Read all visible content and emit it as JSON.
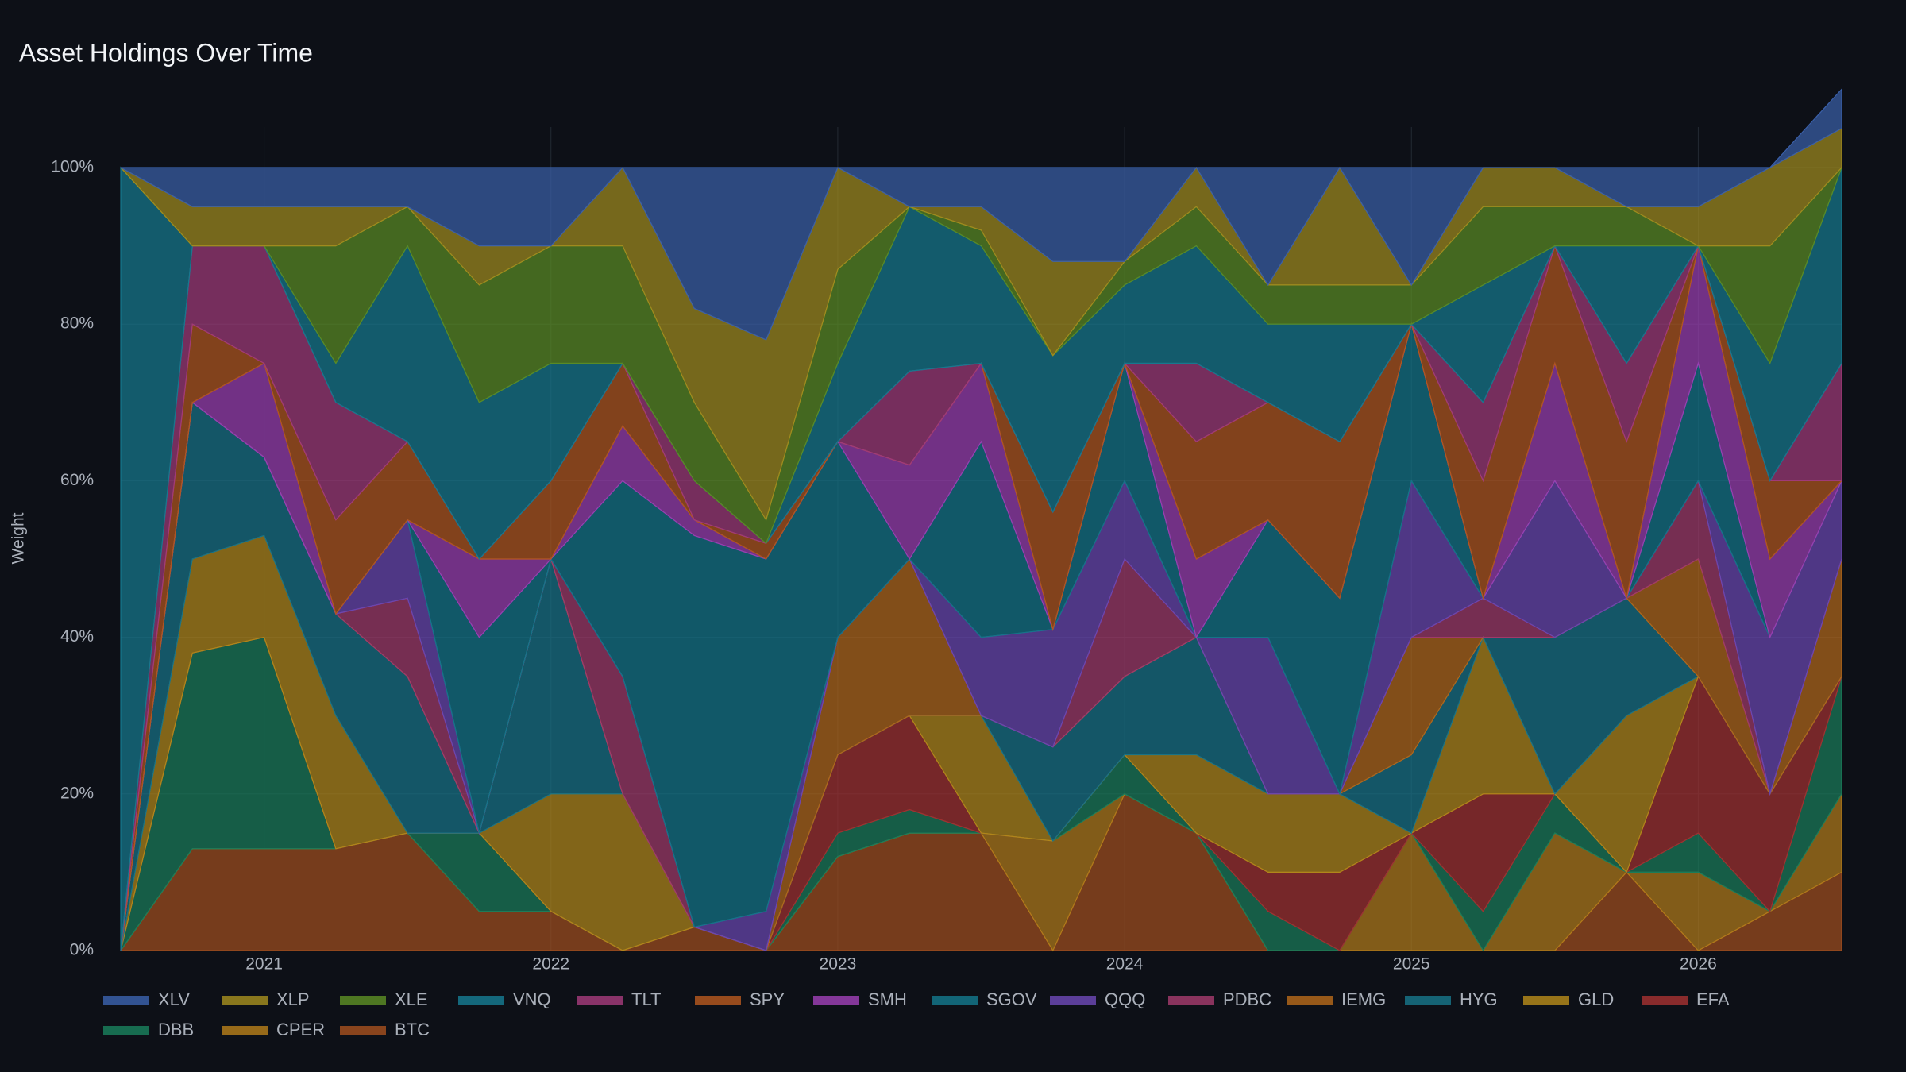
{
  "chart_data": {
    "type": "stacked_area",
    "title": "Asset Holdings Over Time",
    "y_label": "Weight",
    "x": [
      2020.5,
      2020.75,
      2021.0,
      2021.25,
      2021.5,
      2021.75,
      2022.0,
      2022.25,
      2022.5,
      2022.75,
      2023.0,
      2023.25,
      2023.5,
      2023.75,
      2024.0,
      2024.25,
      2024.5,
      2024.75,
      2025.0,
      2025.25,
      2025.5,
      2025.75,
      2026.0,
      2026.25,
      2026.5
    ],
    "xlim": [
      2020.5,
      2026.5
    ],
    "xticks": [
      2021,
      2022,
      2023,
      2024,
      2025,
      2026
    ],
    "ylim": [
      0,
      100
    ],
    "yticks": [
      {
        "value": 0,
        "label": "0%"
      },
      {
        "value": 20,
        "label": "20%"
      },
      {
        "value": 40,
        "label": "40%"
      },
      {
        "value": 60,
        "label": "60%"
      },
      {
        "value": 80,
        "label": "80%"
      },
      {
        "value": 100,
        "label": "100%"
      }
    ],
    "grid": true,
    "series": [
      {
        "name": "XLV",
        "color": "#3a5fa8",
        "values": [
          0,
          5,
          5,
          5,
          5,
          10,
          10,
          0,
          18,
          22,
          0,
          5,
          5,
          12,
          12,
          0,
          15,
          0,
          15,
          0,
          0,
          5,
          5,
          0,
          5
        ]
      },
      {
        "name": "XLP",
        "color": "#a08a1e",
        "values": [
          0,
          5,
          5,
          5,
          0,
          5,
          0,
          10,
          12,
          23,
          13,
          0,
          3,
          12,
          0,
          5,
          0,
          15,
          0,
          5,
          5,
          0,
          5,
          10,
          5
        ]
      },
      {
        "name": "XLE",
        "color": "#5a8a24",
        "values": [
          0,
          0,
          0,
          15,
          5,
          15,
          15,
          15,
          10,
          3,
          12,
          0,
          2,
          0,
          3,
          5,
          5,
          5,
          5,
          10,
          5,
          5,
          0,
          15,
          0
        ]
      },
      {
        "name": "VNQ",
        "color": "#16788e",
        "values": [
          100,
          0,
          0,
          5,
          25,
          20,
          15,
          0,
          0,
          0,
          10,
          21,
          15,
          20,
          10,
          15,
          10,
          15,
          0,
          15,
          0,
          15,
          0,
          15,
          25
        ]
      },
      {
        "name": "TLT",
        "color": "#a03a78",
        "values": [
          0,
          10,
          15,
          15,
          0,
          0,
          0,
          0,
          5,
          0,
          0,
          12,
          0,
          0,
          0,
          10,
          0,
          0,
          0,
          10,
          0,
          10,
          0,
          0,
          15
        ]
      },
      {
        "name": "SPY",
        "color": "#b0561e",
        "values": [
          0,
          10,
          0,
          12,
          10,
          0,
          10,
          8,
          0,
          2,
          0,
          0,
          0,
          15,
          0,
          15,
          15,
          20,
          0,
          15,
          15,
          20,
          0,
          10,
          0
        ]
      },
      {
        "name": "SMH",
        "color": "#9a3eb0",
        "values": [
          0,
          0,
          12,
          0,
          0,
          10,
          0,
          7,
          2,
          0,
          0,
          12,
          10,
          0,
          0,
          10,
          0,
          0,
          0,
          0,
          15,
          0,
          15,
          10,
          0
        ]
      },
      {
        "name": "SGOV",
        "color": "#147488",
        "values": [
          0,
          0,
          0,
          0,
          0,
          25,
          0,
          25,
          50,
          45,
          25,
          0,
          25,
          0,
          15,
          0,
          15,
          25,
          20,
          0,
          0,
          0,
          15,
          0,
          0
        ]
      },
      {
        "name": "QQQ",
        "color": "#6a46b0",
        "values": [
          0,
          0,
          0,
          0,
          10,
          0,
          0,
          0,
          0,
          5,
          0,
          0,
          10,
          15,
          10,
          0,
          20,
          0,
          20,
          0,
          20,
          0,
          0,
          20,
          10
        ]
      },
      {
        "name": "PDBC",
        "color": "#a03a6a",
        "values": [
          0,
          0,
          0,
          0,
          10,
          0,
          0,
          15,
          0,
          0,
          0,
          0,
          0,
          0,
          15,
          0,
          0,
          0,
          0,
          5,
          0,
          0,
          10,
          0,
          0
        ]
      },
      {
        "name": "IEMG",
        "color": "#b0661a",
        "values": [
          0,
          0,
          0,
          0,
          0,
          0,
          0,
          0,
          0,
          0,
          15,
          20,
          0,
          0,
          0,
          0,
          0,
          0,
          15,
          0,
          0,
          0,
          15,
          0,
          15
        ]
      },
      {
        "name": "HYG",
        "color": "#187286",
        "values": [
          0,
          20,
          10,
          13,
          20,
          0,
          30,
          0,
          0,
          0,
          0,
          0,
          0,
          12,
          10,
          15,
          0,
          0,
          10,
          0,
          20,
          15,
          0,
          0,
          0
        ]
      },
      {
        "name": "GLD",
        "color": "#b0861a",
        "values": [
          0,
          12,
          13,
          17,
          0,
          0,
          15,
          20,
          0,
          0,
          0,
          0,
          15,
          0,
          0,
          10,
          10,
          10,
          0,
          20,
          0,
          20,
          0,
          0,
          0
        ]
      },
      {
        "name": "EFA",
        "color": "#a03030",
        "values": [
          0,
          0,
          0,
          0,
          0,
          0,
          0,
          0,
          0,
          0,
          10,
          12,
          0,
          0,
          0,
          0,
          5,
          10,
          0,
          15,
          0,
          0,
          20,
          15,
          0
        ]
      },
      {
        "name": "DBB",
        "color": "#1a7c5a",
        "values": [
          0,
          25,
          27,
          0,
          0,
          10,
          0,
          0,
          0,
          0,
          3,
          3,
          0,
          0,
          5,
          0,
          5,
          0,
          0,
          5,
          5,
          0,
          5,
          0,
          15
        ]
      },
      {
        "name": "CPER",
        "color": "#b07a1a",
        "values": [
          0,
          0,
          0,
          0,
          0,
          0,
          0,
          0,
          0,
          0,
          0,
          0,
          0,
          14,
          0,
          0,
          0,
          0,
          15,
          0,
          15,
          0,
          10,
          0,
          10
        ]
      },
      {
        "name": "BTC",
        "color": "#a04e1e",
        "values": [
          0,
          13,
          13,
          13,
          15,
          5,
          5,
          0,
          3,
          0,
          12,
          15,
          15,
          0,
          20,
          15,
          0,
          0,
          0,
          0,
          0,
          10,
          0,
          5,
          10
        ]
      }
    ]
  }
}
